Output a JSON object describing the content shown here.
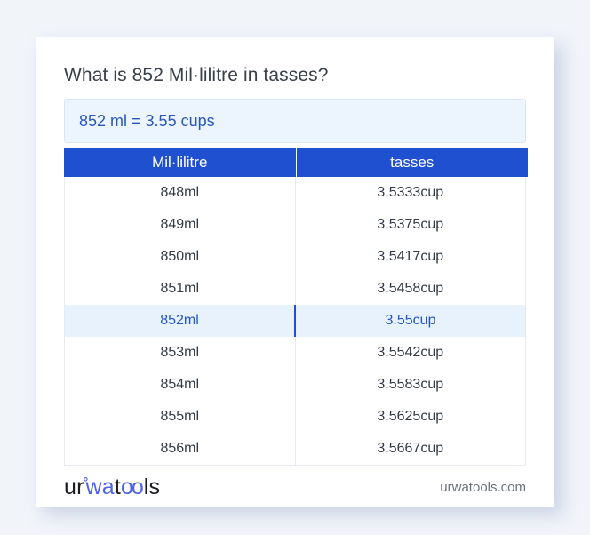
{
  "page": {
    "title": "What is 852 Mil·lilitre in tasses?",
    "result_text": "852 ml = 3.55 cups"
  },
  "table": {
    "headers": [
      "Mil·lilitre",
      "tasses"
    ],
    "rows": [
      {
        "ml": "848ml",
        "cup": "3.5333cup",
        "highlight": false
      },
      {
        "ml": "849ml",
        "cup": "3.5375cup",
        "highlight": false
      },
      {
        "ml": "850ml",
        "cup": "3.5417cup",
        "highlight": false
      },
      {
        "ml": "851ml",
        "cup": "3.5458cup",
        "highlight": false
      },
      {
        "ml": "852ml",
        "cup": "3.55cup",
        "highlight": true
      },
      {
        "ml": "853ml",
        "cup": "3.5542cup",
        "highlight": false
      },
      {
        "ml": "854ml",
        "cup": "3.5583cup",
        "highlight": false
      },
      {
        "ml": "855ml",
        "cup": "3.5625cup",
        "highlight": false
      },
      {
        "ml": "856ml",
        "cup": "3.5667cup",
        "highlight": false
      }
    ]
  },
  "footer": {
    "logo": {
      "ur": "ur",
      "ring": "°",
      "wa": "wa",
      "t": "t",
      "oo": "oo",
      "ls": "ls"
    },
    "domain": "urwatools.com"
  },
  "colors": {
    "page_background": "#f1f4f9",
    "card_background": "#ffffff",
    "header_blue": "#1e50d0",
    "result_box_background": "#ecf4fd",
    "result_text_blue": "#2a58ba",
    "highlight_row_background": "#e8f2fd",
    "highlight_text_blue": "#2357c5",
    "row_text": "#333a45",
    "logo_blue": "#4f63e8"
  }
}
